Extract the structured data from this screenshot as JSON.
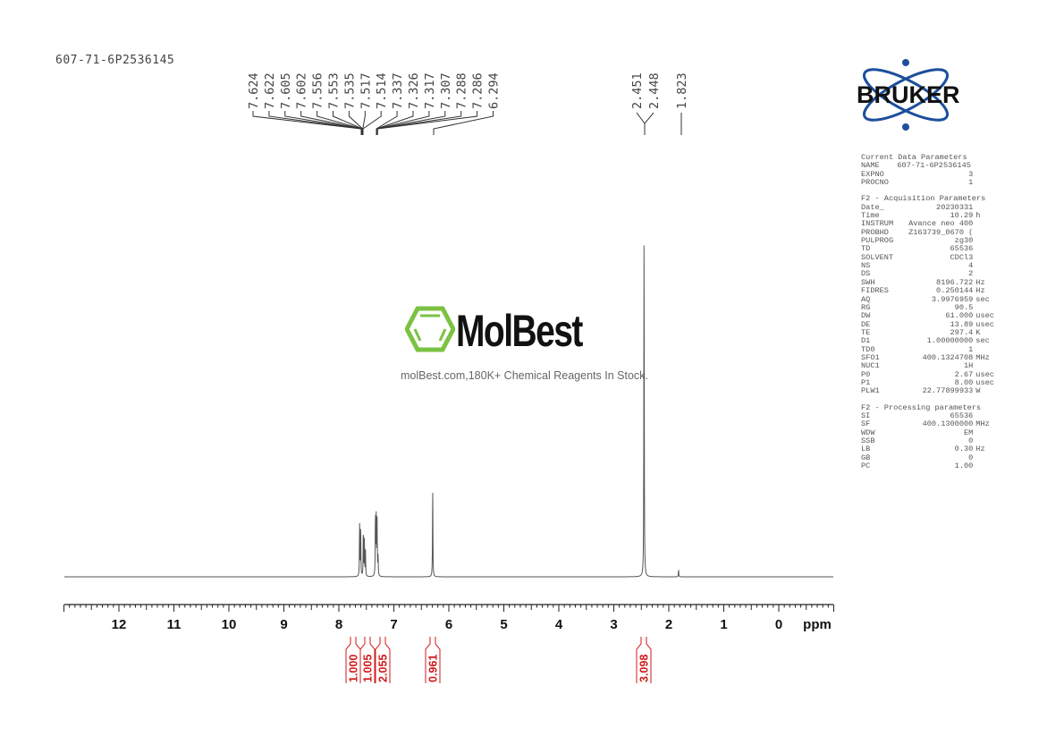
{
  "sample_id": "607-71-6P2536145",
  "logo": {
    "bruker": "BRUKER",
    "molbest": "MolBest",
    "molbest_tagline": "molBest.com,180K+ Chemical Reagents In Stock.",
    "bruker_color": "#1d4f9c",
    "molbest_color": "#7cc242"
  },
  "parameters": {
    "current": {
      "title": "Current Data Parameters",
      "rows": [
        [
          "NAME",
          "607-71-6P2536145",
          ""
        ],
        [
          "EXPNO",
          "3",
          ""
        ],
        [
          "PROCNO",
          "1",
          ""
        ]
      ]
    },
    "acquisition": {
      "title": "F2 - Acquisition Parameters",
      "rows": [
        [
          "Date_",
          "20230331",
          ""
        ],
        [
          "Time",
          "10.29",
          "h"
        ],
        [
          "INSTRUM",
          "Avance neo 400",
          ""
        ],
        [
          "PROBHD",
          "Z163739_0670 (",
          ""
        ],
        [
          "PULPROG",
          "zg30",
          ""
        ],
        [
          "TD",
          "65536",
          ""
        ],
        [
          "SOLVENT",
          "CDCl3",
          ""
        ],
        [
          "NS",
          "4",
          ""
        ],
        [
          "DS",
          "2",
          ""
        ],
        [
          "SWH",
          "8196.722",
          "Hz"
        ],
        [
          "FIDRES",
          "0.250144",
          "Hz"
        ],
        [
          "AQ",
          "3.9976959",
          "sec"
        ],
        [
          "RG",
          "90.5",
          ""
        ],
        [
          "DW",
          "61.000",
          "usec"
        ],
        [
          "DE",
          "13.89",
          "usec"
        ],
        [
          "TE",
          "297.4",
          "K"
        ],
        [
          "D1",
          "1.00000000",
          "sec"
        ],
        [
          "TD0",
          "1",
          ""
        ],
        [
          "SFO1",
          "400.1324708",
          "MHz"
        ],
        [
          "NUC1",
          "1H",
          ""
        ],
        [
          "P0",
          "2.67",
          "usec"
        ],
        [
          "P1",
          "8.00",
          "usec"
        ],
        [
          "PLW1",
          "22.77899933",
          "W"
        ]
      ]
    },
    "processing": {
      "title": "F2 - Processing parameters",
      "rows": [
        [
          "SI",
          "65536",
          ""
        ],
        [
          "SF",
          "400.1300000",
          "MHz"
        ],
        [
          "WDW",
          "EM",
          ""
        ],
        [
          "SSB",
          "0",
          ""
        ],
        [
          "LB",
          "0.30",
          "Hz"
        ],
        [
          "GB",
          "0",
          ""
        ],
        [
          "PC",
          "1.00",
          ""
        ]
      ]
    }
  },
  "chart_data": {
    "type": "line",
    "xlabel": "ppm",
    "xlim": [
      13,
      -1
    ],
    "x_reversed": true,
    "xticks": [
      "12",
      "11",
      "10",
      "9",
      "8",
      "7",
      "6",
      "5",
      "4",
      "3",
      "2",
      "1",
      "0"
    ],
    "peak_labels_left": [
      "7.624",
      "7.622",
      "7.605",
      "7.602",
      "7.556",
      "7.553",
      "7.535",
      "7.517",
      "7.514",
      "7.337",
      "7.326",
      "7.317",
      "7.307",
      "7.288",
      "7.286",
      "6.294"
    ],
    "peak_labels_right": [
      "2.451",
      "2.448",
      "1.823"
    ],
    "peaks": [
      {
        "ppm": 7.623,
        "intensity": 0.15
      },
      {
        "ppm": 7.604,
        "intensity": 0.145
      },
      {
        "ppm": 7.555,
        "intensity": 0.135
      },
      {
        "ppm": 7.536,
        "intensity": 0.1
      },
      {
        "ppm": 7.516,
        "intensity": 0.07
      },
      {
        "ppm": 7.335,
        "intensity": 0.18
      },
      {
        "ppm": 7.32,
        "intensity": 0.17
      },
      {
        "ppm": 7.305,
        "intensity": 0.15
      },
      {
        "ppm": 7.287,
        "intensity": 0.06
      },
      {
        "ppm": 6.294,
        "intensity": 0.257
      },
      {
        "ppm": 2.45,
        "intensity": 1.0
      },
      {
        "ppm": 1.823,
        "intensity": 0.02
      }
    ],
    "integrals": [
      {
        "ppm": 7.61,
        "value": "1.000"
      },
      {
        "ppm": 7.54,
        "value": "1.005"
      },
      {
        "ppm": 7.32,
        "value": "2.055"
      },
      {
        "ppm": 6.29,
        "value": "0.961"
      },
      {
        "ppm": 2.45,
        "value": "3.098"
      }
    ],
    "integral_color": "#d11a1a",
    "grid": false
  }
}
